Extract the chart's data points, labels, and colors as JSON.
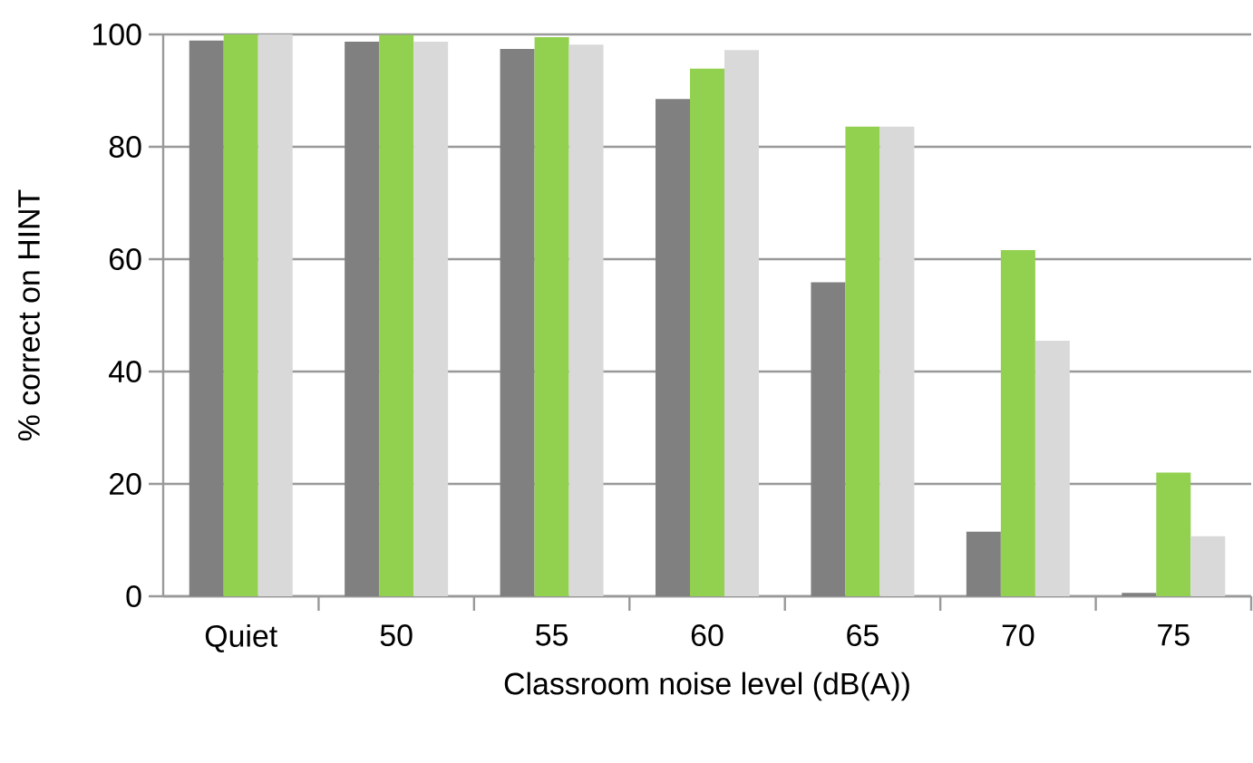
{
  "chart_data": {
    "type": "bar",
    "xlabel": "Classroom noise level (dB(A))",
    "ylabel": "% correct on HINT",
    "categories": [
      "Quiet",
      "50",
      "55",
      "60",
      "65",
      "70",
      "75"
    ],
    "series": [
      {
        "color": "#808080",
        "values": [
          98.9,
          98.7,
          97.4,
          88.5,
          55.9,
          11.5,
          0.6
        ]
      },
      {
        "color": "#92d050",
        "values": [
          100,
          99.9,
          99.5,
          93.9,
          83.6,
          61.6,
          22.0
        ]
      },
      {
        "color": "#d9d9d9",
        "values": [
          100,
          98.7,
          98.2,
          97.2,
          83.6,
          45.5,
          10.7
        ]
      }
    ],
    "ylim": [
      0,
      100
    ],
    "yticks": [
      0,
      20,
      40,
      60,
      80,
      100
    ],
    "grid": "y",
    "legend": false
  }
}
